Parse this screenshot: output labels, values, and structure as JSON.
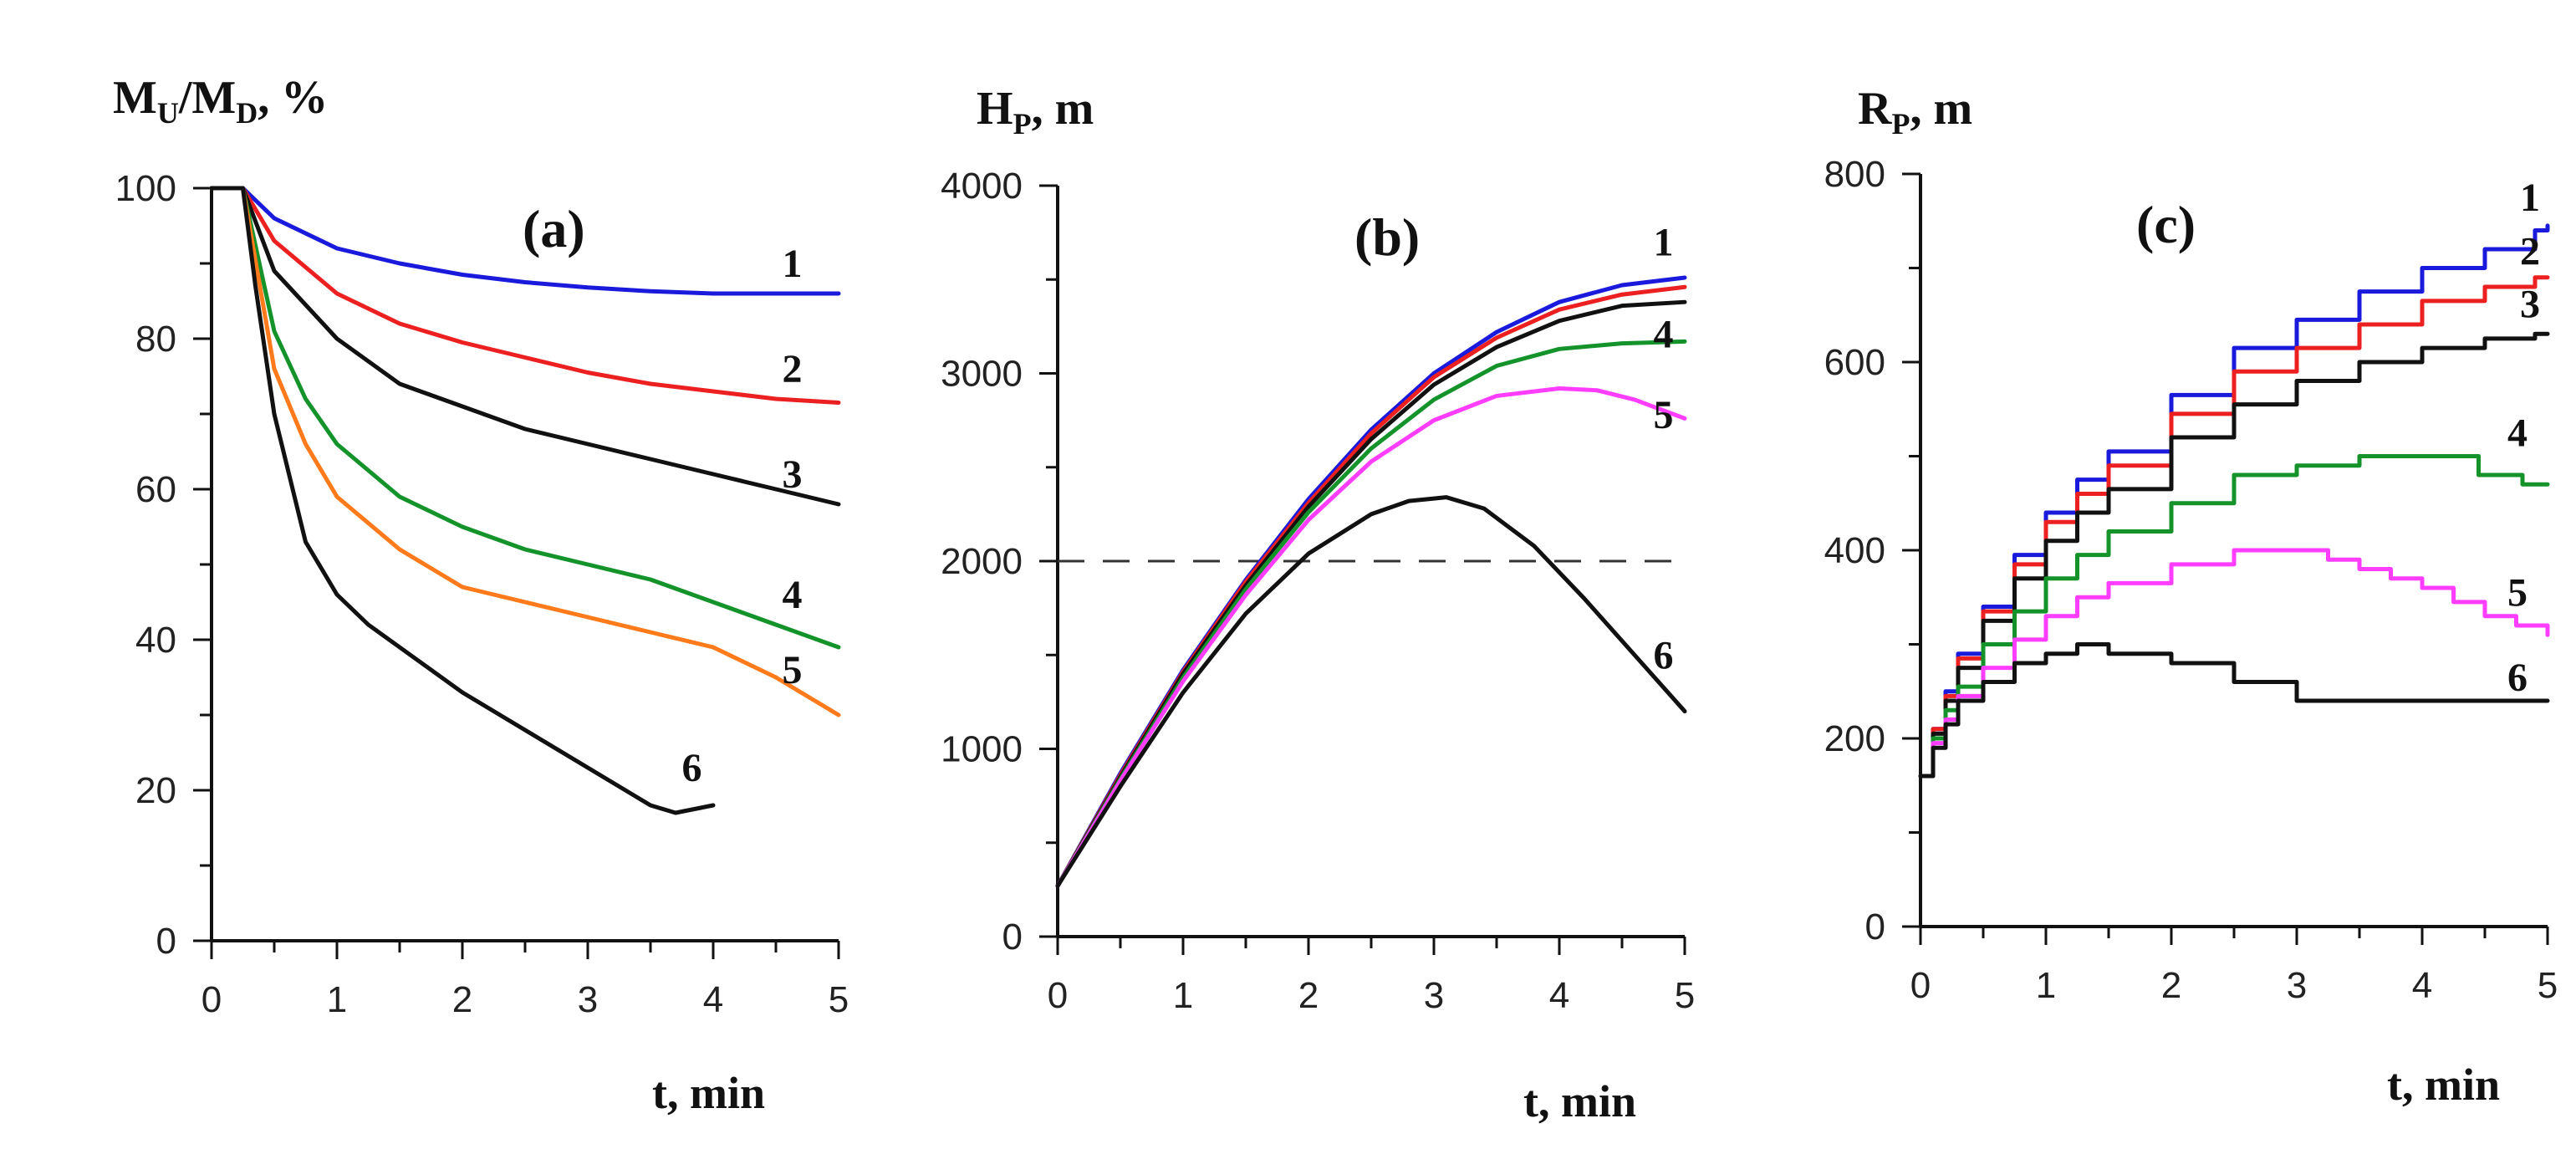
{
  "chart_data": [
    {
      "id": "a",
      "type": "line",
      "panel_label": "(a)",
      "ylabel": "Mᵤ/Mᴅ, %",
      "ylabel_main_1": "M",
      "ylabel_sub_1": "U",
      "ylabel_mid": "/M",
      "ylabel_sub_2": "D",
      "ylabel_tail": ", %",
      "xlabel": "t, min",
      "xlim": [
        0,
        5
      ],
      "ylim": [
        0,
        100
      ],
      "xticks": [
        "0",
        "1",
        "2",
        "3",
        "4",
        "5"
      ],
      "yticks": [
        "0",
        "20",
        "40",
        "60",
        "80",
        "100"
      ],
      "series": [
        {
          "name": "1",
          "color": "#1a1adc",
          "x": [
            0,
            0.25,
            0.5,
            1,
            1.5,
            2,
            2.5,
            3,
            3.5,
            4,
            4.5,
            5
          ],
          "y": [
            100,
            100,
            96,
            92,
            90,
            88.5,
            87.5,
            86.8,
            86.3,
            86,
            86,
            86
          ]
        },
        {
          "name": "2",
          "color": "#ec2020",
          "x": [
            0,
            0.25,
            0.5,
            1,
            1.5,
            2,
            2.5,
            3,
            3.5,
            4,
            4.5,
            5
          ],
          "y": [
            100,
            100,
            93,
            86,
            82,
            79.5,
            77.5,
            75.5,
            74,
            73,
            72,
            71.5
          ]
        },
        {
          "name": "3",
          "color": "#111111",
          "x": [
            0,
            0.25,
            0.5,
            1,
            1.5,
            2,
            2.5,
            3,
            3.5,
            4,
            4.5,
            5
          ],
          "y": [
            100,
            100,
            89,
            80,
            74,
            71,
            68,
            66,
            64,
            62,
            60,
            58
          ]
        },
        {
          "name": "4",
          "color": "#13932a",
          "x": [
            0,
            0.25,
            0.5,
            0.75,
            1,
            1.5,
            2,
            2.5,
            3,
            3.5,
            4,
            4.5,
            5
          ],
          "y": [
            100,
            100,
            81,
            72,
            66,
            59,
            55,
            52,
            50,
            48,
            45,
            42,
            39
          ]
        },
        {
          "name": "5",
          "color": "#ff7a1a",
          "x": [
            0,
            0.25,
            0.5,
            0.75,
            1,
            1.5,
            2,
            2.5,
            3,
            3.5,
            4,
            4.5,
            5
          ],
          "y": [
            100,
            100,
            76,
            66,
            59,
            52,
            47,
            45,
            43,
            41,
            39,
            35,
            30
          ]
        },
        {
          "name": "6",
          "color": "#111111",
          "x": [
            0,
            0.25,
            0.35,
            0.5,
            0.75,
            1,
            1.25,
            1.5,
            2,
            2.5,
            3,
            3.5,
            3.7,
            4
          ],
          "y": [
            100,
            100,
            87,
            70,
            53,
            46,
            42,
            39,
            33,
            28,
            23,
            18,
            17,
            18
          ]
        }
      ],
      "curve_labels": [
        {
          "text": "1",
          "x": 4.55,
          "y": 90
        },
        {
          "text": "2",
          "x": 4.55,
          "y": 76
        },
        {
          "text": "3",
          "x": 4.55,
          "y": 62
        },
        {
          "text": "4",
          "x": 4.55,
          "y": 46
        },
        {
          "text": "5",
          "x": 4.55,
          "y": 36
        },
        {
          "text": "6",
          "x": 3.75,
          "y": 23
        }
      ]
    },
    {
      "id": "b",
      "type": "line",
      "panel_label": "(b)",
      "ylabel": "Hₚ, m",
      "ylabel_main_1": "H",
      "ylabel_sub_1": "P",
      "ylabel_tail": ", m",
      "xlabel": "t, min",
      "xlim": [
        0,
        5
      ],
      "ylim": [
        0,
        4000
      ],
      "xticks": [
        "0",
        "1",
        "2",
        "3",
        "4",
        "5"
      ],
      "yticks": [
        "0",
        "1000",
        "2000",
        "3000",
        "4000"
      ],
      "reference_line_y": 2000,
      "series": [
        {
          "name": "1",
          "color": "#1a1adc",
          "x": [
            0,
            0.5,
            1,
            1.5,
            2,
            2.5,
            3,
            3.5,
            4,
            4.5,
            5
          ],
          "y": [
            270,
            870,
            1420,
            1900,
            2330,
            2700,
            3000,
            3220,
            3380,
            3470,
            3510
          ]
        },
        {
          "name": "2",
          "color": "#ec2020",
          "x": [
            0,
            0.5,
            1,
            1.5,
            2,
            2.5,
            3,
            3.5,
            4,
            4.5,
            5
          ],
          "y": [
            270,
            860,
            1410,
            1890,
            2310,
            2680,
            2980,
            3190,
            3340,
            3420,
            3460
          ]
        },
        {
          "name": "3",
          "color": "#111111",
          "x": [
            0,
            0.5,
            1,
            1.5,
            2,
            2.5,
            3,
            3.5,
            4,
            4.5,
            5
          ],
          "y": [
            270,
            850,
            1400,
            1870,
            2290,
            2650,
            2940,
            3140,
            3280,
            3360,
            3380
          ]
        },
        {
          "name": "4",
          "color": "#13932a",
          "x": [
            0,
            0.5,
            1,
            1.5,
            2,
            2.5,
            3,
            3.5,
            4,
            4.5,
            5
          ],
          "y": [
            270,
            840,
            1380,
            1850,
            2260,
            2600,
            2860,
            3040,
            3130,
            3160,
            3170
          ]
        },
        {
          "name": "5",
          "color": "#ff3dff",
          "x": [
            0,
            0.5,
            1,
            1.5,
            2,
            2.5,
            3,
            3.5,
            4,
            4.3,
            4.6,
            5
          ],
          "y": [
            270,
            830,
            1360,
            1820,
            2220,
            2530,
            2750,
            2880,
            2920,
            2910,
            2860,
            2760
          ]
        },
        {
          "name": "6",
          "color": "#111111",
          "x": [
            0,
            0.5,
            1,
            1.5,
            2,
            2.5,
            2.8,
            3.1,
            3.4,
            3.8,
            4.2,
            4.6,
            5
          ],
          "y": [
            270,
            800,
            1300,
            1720,
            2040,
            2250,
            2320,
            2340,
            2280,
            2080,
            1800,
            1500,
            1200
          ]
        }
      ],
      "curve_labels": [
        {
          "text": "1",
          "x": 4.75,
          "y": 3700
        },
        {
          "text": "4",
          "x": 4.75,
          "y": 3210
        },
        {
          "text": "5",
          "x": 4.75,
          "y": 2780
        },
        {
          "text": "6",
          "x": 4.75,
          "y": 1500
        }
      ]
    },
    {
      "id": "c",
      "type": "line",
      "panel_label": "(c)",
      "ylabel": "Rₚ, m",
      "ylabel_main_1": "R",
      "ylabel_sub_1": "P",
      "ylabel_tail": ", m",
      "xlabel": "t, min",
      "xlim": [
        0,
        5
      ],
      "ylim": [
        0,
        800
      ],
      "xticks": [
        "0",
        "1",
        "2",
        "3",
        "4",
        "5"
      ],
      "yticks": [
        "0",
        "200",
        "400",
        "600",
        "800"
      ],
      "step": true,
      "series": [
        {
          "name": "1",
          "color": "#1a1adc",
          "x": [
            0,
            0.1,
            0.2,
            0.3,
            0.5,
            0.75,
            1,
            1.25,
            1.5,
            2,
            2.5,
            3,
            3.5,
            4,
            4.5,
            4.9,
            5
          ],
          "y": [
            160,
            210,
            250,
            290,
            340,
            395,
            440,
            475,
            505,
            565,
            615,
            645,
            675,
            700,
            720,
            740,
            745
          ]
        },
        {
          "name": "2",
          "color": "#ec2020",
          "x": [
            0,
            0.1,
            0.2,
            0.3,
            0.5,
            0.75,
            1,
            1.25,
            1.5,
            2,
            2.5,
            3,
            3.5,
            4,
            4.5,
            4.9,
            5
          ],
          "y": [
            160,
            210,
            245,
            285,
            335,
            385,
            430,
            460,
            490,
            545,
            590,
            615,
            640,
            665,
            680,
            690,
            690
          ]
        },
        {
          "name": "3",
          "color": "#111111",
          "x": [
            0,
            0.1,
            0.2,
            0.3,
            0.5,
            0.75,
            1,
            1.25,
            1.5,
            2,
            2.5,
            3,
            3.5,
            4,
            4.5,
            4.9,
            5
          ],
          "y": [
            160,
            205,
            240,
            275,
            325,
            370,
            410,
            440,
            465,
            520,
            555,
            580,
            600,
            615,
            625,
            630,
            630
          ]
        },
        {
          "name": "4",
          "color": "#13932a",
          "x": [
            0,
            0.1,
            0.2,
            0.3,
            0.5,
            0.75,
            1,
            1.25,
            1.5,
            2,
            2.5,
            3,
            3.5,
            4,
            4.45,
            4.8,
            5
          ],
          "y": [
            160,
            200,
            230,
            255,
            300,
            335,
            370,
            395,
            420,
            450,
            480,
            490,
            500,
            500,
            480,
            470,
            470
          ]
        },
        {
          "name": "5",
          "color": "#ff3dff",
          "x": [
            0,
            0.1,
            0.2,
            0.3,
            0.5,
            0.75,
            1,
            1.25,
            1.5,
            2,
            2.5,
            3,
            3.25,
            3.5,
            3.75,
            4,
            4.25,
            4.5,
            4.75,
            5
          ],
          "y": [
            160,
            195,
            220,
            245,
            275,
            305,
            330,
            350,
            365,
            385,
            400,
            400,
            390,
            380,
            370,
            360,
            345,
            330,
            320,
            310
          ]
        },
        {
          "name": "6",
          "color": "#111111",
          "x": [
            0,
            0.1,
            0.2,
            0.3,
            0.5,
            0.75,
            1,
            1.25,
            1.5,
            2,
            2.5,
            3,
            3.5,
            4,
            4.5,
            5
          ],
          "y": [
            160,
            190,
            215,
            240,
            260,
            280,
            290,
            300,
            290,
            280,
            260,
            240,
            240,
            240,
            240,
            240
          ]
        }
      ],
      "curve_labels": [
        {
          "text": "1",
          "x": 4.78,
          "y": 775
        },
        {
          "text": "2",
          "x": 4.78,
          "y": 718
        },
        {
          "text": "3",
          "x": 4.78,
          "y": 662
        },
        {
          "text": "4",
          "x": 4.68,
          "y": 525
        },
        {
          "text": "5",
          "x": 4.68,
          "y": 355
        },
        {
          "text": "6",
          "x": 4.68,
          "y": 265
        }
      ]
    }
  ]
}
